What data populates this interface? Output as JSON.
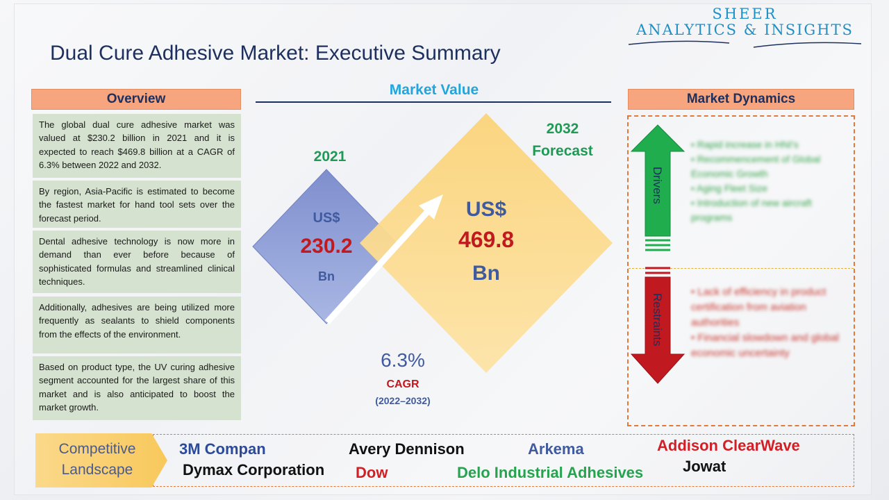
{
  "logo": {
    "line1": "SHEER",
    "line2": "ANALYTICS & INSIGHTS"
  },
  "title": "Dual Cure Adhesive Market: Executive Summary",
  "overview": {
    "header": "Overview",
    "paragraphs": [
      "The global dual cure adhesive market was valued at $230.2 billion in 2021 and it is expected to reach $469.8 billion at a CAGR of 6.3% between 2022 and 2032.",
      "By region, Asia-Pacific is estimated to become the fastest market for hand tool sets over the forecast period.",
      "Dental adhesive technology is now more in demand than ever before because of sophisticated formulas and streamlined clinical techniques.",
      "Additionally, adhesives are being utilized more frequently as sealants to shield components from the effects of the environment.",
      "Based on product type, the UV curing adhesive segment accounted for the largest share of this market and is also anticipated to boost the market growth."
    ]
  },
  "market_value": {
    "title": "Market Value",
    "base": {
      "year": "2021",
      "currency": "US$",
      "value": "230.2",
      "unit": "Bn"
    },
    "forecast": {
      "year_line1": "2032",
      "year_line2": "Forecast",
      "currency": "US$",
      "value": "469.8",
      "unit": "Bn"
    },
    "cagr": {
      "value": "6.3%",
      "label": "CAGR",
      "period": "(2022–2032)"
    }
  },
  "dynamics": {
    "header": "Market Dynamics",
    "drivers_label": "Drivers",
    "restraints_label": "Restraints",
    "drivers": [
      "Rapid increase in HNI's",
      "Recommencement of Global Economic Growth",
      "Aging Fleet Size",
      "Introduction of new aircraft programs"
    ],
    "restraints": [
      "Lack of efficiency in product certification from aviation authorities",
      "Financial slowdown and global economic uncertainty"
    ]
  },
  "competitive": {
    "label_line1": "Competitive",
    "label_line2": "Landscape",
    "companies": [
      {
        "name": "3M Compan",
        "color": "#2c4a9a"
      },
      {
        "name": "Avery Dennison",
        "color": "#111111"
      },
      {
        "name": "Arkema",
        "color": "#3f5a9e"
      },
      {
        "name": "Addison ClearWave",
        "color": "#d21f26"
      },
      {
        "name": "Dymax Corporation",
        "color": "#111111"
      },
      {
        "name": "Dow",
        "color": "#d21f26"
      },
      {
        "name": "Delo Industrial Adhesives",
        "color": "#26a34f"
      },
      {
        "name": "Jowat",
        "color": "#111111"
      }
    ]
  },
  "colors": {
    "navy": "#1d2f5e",
    "accent_blue": "#22a5dc",
    "green": "#1e9a55",
    "red": "#c0191f",
    "orange_header": "#f6a57e",
    "overview_bg": "#d5e2cf"
  }
}
